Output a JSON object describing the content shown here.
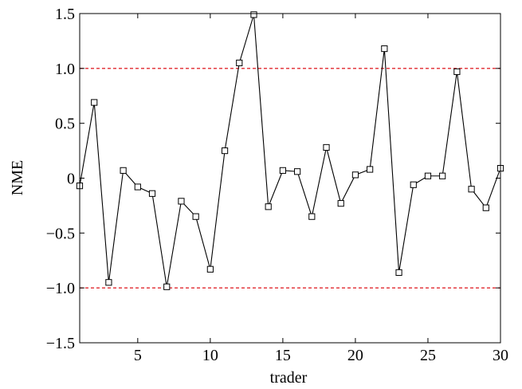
{
  "chart_data": {
    "type": "line",
    "xlabel": "trader",
    "ylabel": "NME",
    "xlim": [
      1,
      30
    ],
    "ylim": [
      -1.5,
      1.5
    ],
    "x_ticks": [
      5,
      10,
      15,
      20,
      25,
      30
    ],
    "x_tick_labels": [
      "5",
      "10",
      "15",
      "20",
      "25",
      "30"
    ],
    "y_ticks": [
      1.5,
      1.0,
      0.5,
      0,
      -0.5,
      -1.0,
      -1.5
    ],
    "y_tick_labels": [
      "1.5",
      "1.0",
      "0.5",
      "0",
      "−0.5",
      "−1.0",
      "−1.5"
    ],
    "grid": false,
    "reference_lines": [
      {
        "y": 1.0,
        "style": "dashed",
        "color": "#e0282e"
      },
      {
        "y": -1.0,
        "style": "dashed",
        "color": "#e0282e"
      }
    ],
    "series": [
      {
        "marker": "square",
        "color": "#000000",
        "x": [
          1,
          2,
          3,
          4,
          5,
          6,
          7,
          8,
          9,
          10,
          11,
          12,
          13,
          14,
          15,
          16,
          17,
          18,
          19,
          20,
          21,
          22,
          23,
          24,
          25,
          26,
          27,
          28,
          29,
          30
        ],
        "values": [
          -0.07,
          0.69,
          -0.95,
          0.07,
          -0.08,
          -0.14,
          -0.99,
          -0.21,
          -0.35,
          -0.83,
          0.25,
          1.05,
          1.49,
          -0.26,
          0.07,
          0.06,
          -0.35,
          0.28,
          -0.23,
          0.03,
          0.08,
          1.18,
          -0.86,
          -0.06,
          0.02,
          0.02,
          0.97,
          -0.1,
          -0.27,
          0.09
        ]
      }
    ]
  }
}
